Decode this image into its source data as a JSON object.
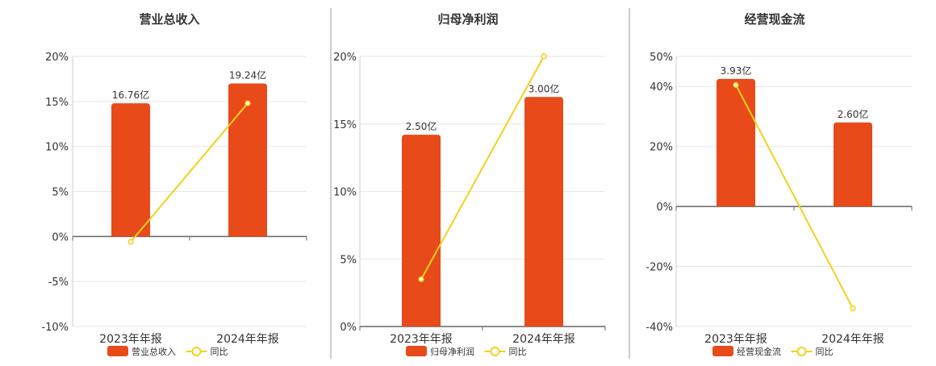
{
  "colors": {
    "bar": "#E84A1A",
    "line": "#F2D21C",
    "grid": "#E6E6E6",
    "axis": "#666666",
    "divider": "#999999",
    "text": "#333333"
  },
  "chart_data": [
    {
      "type": "bar",
      "title": "营业总收入",
      "categories": [
        "2023年年报",
        "2024年年报"
      ],
      "series": [
        {
          "name": "营业总收入",
          "kind": "bar",
          "values": [
            16.76,
            19.24
          ],
          "labels": [
            "16.76亿",
            "19.24亿"
          ],
          "display_pct": [
            14.8,
            17.0
          ]
        },
        {
          "name": "同比",
          "kind": "line",
          "values": [
            -0.6,
            14.8
          ]
        }
      ],
      "ylim": [
        -10,
        20
      ],
      "yticks": [
        -10,
        -5,
        0,
        5,
        10,
        15,
        20
      ],
      "ytick_labels": [
        "-10%",
        "-5%",
        "0%",
        "5%",
        "10%",
        "15%",
        "20%"
      ],
      "grid": true,
      "legend": "bottom"
    },
    {
      "type": "bar",
      "title": "归母净利润",
      "categories": [
        "2023年年报",
        "2024年年报"
      ],
      "series": [
        {
          "name": "归母净利润",
          "kind": "bar",
          "values": [
            2.5,
            3.0
          ],
          "labels": [
            "2.50亿",
            "3.00亿"
          ],
          "display_pct": [
            14.2,
            17.0
          ]
        },
        {
          "name": "同比",
          "kind": "line",
          "values": [
            3.5,
            20.0
          ]
        }
      ],
      "ylim": [
        0,
        20
      ],
      "yticks": [
        0,
        5,
        10,
        15,
        20
      ],
      "ytick_labels": [
        "0%",
        "5%",
        "10%",
        "15%",
        "20%"
      ],
      "grid": true,
      "legend": "bottom"
    },
    {
      "type": "bar",
      "title": "经营现金流",
      "categories": [
        "2023年年报",
        "2024年年报"
      ],
      "series": [
        {
          "name": "经营现金流",
          "kind": "bar",
          "values": [
            3.93,
            2.6
          ],
          "labels": [
            "3.93亿",
            "2.60亿"
          ],
          "display_pct": [
            42.5,
            28.0
          ]
        },
        {
          "name": "同比",
          "kind": "line",
          "values": [
            40.5,
            -34.0
          ]
        }
      ],
      "ylim": [
        -40,
        50
      ],
      "yticks": [
        -40,
        -20,
        0,
        20,
        40,
        50
      ],
      "ytick_labels": [
        "-40%",
        "-20%",
        "0%",
        "20%",
        "40%",
        "50%"
      ],
      "grid": true,
      "legend": "bottom"
    }
  ]
}
